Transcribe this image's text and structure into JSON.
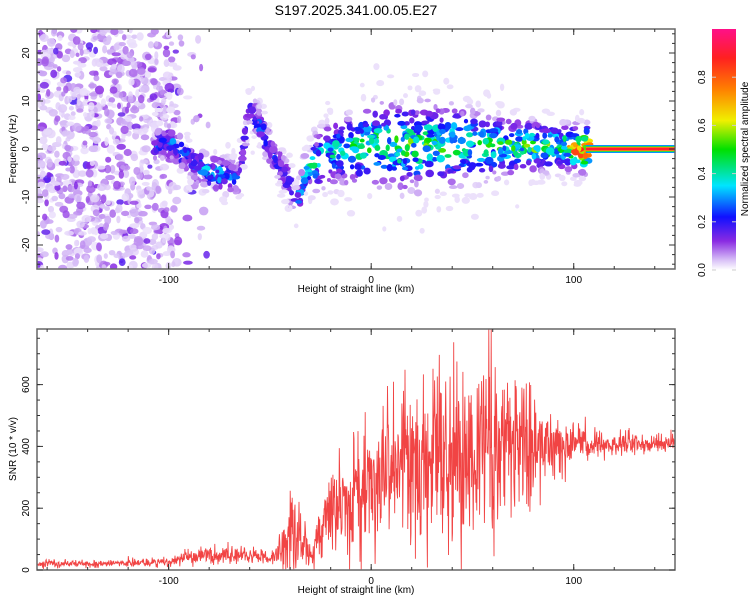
{
  "figure_title": "S197.2025.341.00.05.E27",
  "chart_data": [
    {
      "type": "heatmap",
      "title": "S197.2025.341.00.05.E27",
      "xlabel": "Height of straight line (km)",
      "ylabel": "Frequency (Hz)",
      "xlim": [
        -165,
        150
      ],
      "ylim": [
        -25,
        25
      ],
      "x_ticks": [
        -100,
        0,
        100
      ],
      "x_tick_labels": [
        "-100",
        "0",
        "100"
      ],
      "y_ticks": [
        -20,
        -10,
        0,
        10,
        20
      ],
      "y_tick_labels": [
        "-20",
        "-10",
        "0",
        "10",
        "20"
      ],
      "grid": false,
      "colorbar": {
        "label": "Normalized spectral amplitude",
        "range": [
          0.0,
          1.0
        ],
        "ticks": [
          0.0,
          0.2,
          0.4,
          0.6,
          0.8
        ],
        "tick_labels": [
          "0.0",
          "0.2",
          "0.4",
          "0.6",
          "0.8"
        ],
        "colors": [
          "#ffffff",
          "#d9c2f7",
          "#8a2be2",
          "#1010ff",
          "#00e5ff",
          "#00e000",
          "#f0f000",
          "#ff8000",
          "#ff2020",
          "#ff1088"
        ]
      },
      "ridge": {
        "name": "dominant frequency trace",
        "x": [
          -107,
          -100,
          -95,
          -88,
          -80,
          -72,
          -65,
          -60,
          -55,
          -50,
          -45,
          -40,
          -37,
          -33,
          -28,
          -20,
          -10,
          0,
          20,
          40,
          60,
          80,
          95,
          105,
          120,
          150
        ],
        "y": [
          0.5,
          1.5,
          0,
          -3,
          -5,
          -5.5,
          -6,
          9,
          5,
          0,
          -3,
          -8,
          -12,
          -5,
          -3,
          -1,
          0,
          1,
          0.5,
          0.8,
          0.5,
          0.5,
          0.5,
          0,
          0,
          0
        ],
        "amplitude": [
          0.25,
          0.3,
          0.25,
          0.25,
          0.35,
          0.3,
          0.2,
          0.2,
          0.25,
          0.25,
          0.2,
          0.25,
          0.3,
          0.35,
          0.4,
          0.4,
          0.45,
          0.45,
          0.5,
          0.45,
          0.45,
          0.5,
          0.5,
          0.95,
          0.95,
          0.95
        ]
      },
      "noise_region": {
        "x_range": [
          -165,
          -95
        ],
        "y_range": [
          -25,
          25
        ],
        "amplitude": 0.1
      }
    },
    {
      "type": "line",
      "title": "",
      "xlabel": "Height of straight line (km)",
      "ylabel": "SNR (10 * v/v)",
      "xlim": [
        -165,
        150
      ],
      "ylim": [
        0,
        780
      ],
      "x_ticks": [
        -100,
        0,
        100
      ],
      "x_tick_labels": [
        "-100",
        "0",
        "100"
      ],
      "y_ticks": [
        0,
        200,
        400,
        600
      ],
      "y_tick_labels": [
        "0",
        "200",
        "400",
        "600"
      ],
      "grid": false,
      "series": [
        {
          "name": "SNR",
          "color": "#f03030",
          "envelope_x": [
            -165,
            -120,
            -100,
            -90,
            -80,
            -60,
            -50,
            -45,
            -40,
            -35,
            -30,
            -25,
            -20,
            -10,
            0,
            10,
            20,
            30,
            40,
            50,
            60,
            70,
            80,
            90,
            100,
            110,
            120,
            135,
            150
          ],
          "envelope_center": [
            20,
            22,
            25,
            40,
            50,
            45,
            40,
            60,
            130,
            120,
            40,
            120,
            200,
            230,
            280,
            320,
            340,
            360,
            380,
            390,
            400,
            400,
            400,
            410,
            410,
            410,
            410,
            410,
            410
          ],
          "envelope_spread": [
            15,
            15,
            18,
            30,
            35,
            30,
            30,
            60,
            160,
            120,
            50,
            90,
            150,
            180,
            220,
            260,
            300,
            320,
            330,
            340,
            330,
            280,
            200,
            120,
            80,
            60,
            50,
            40,
            35
          ]
        }
      ]
    }
  ]
}
